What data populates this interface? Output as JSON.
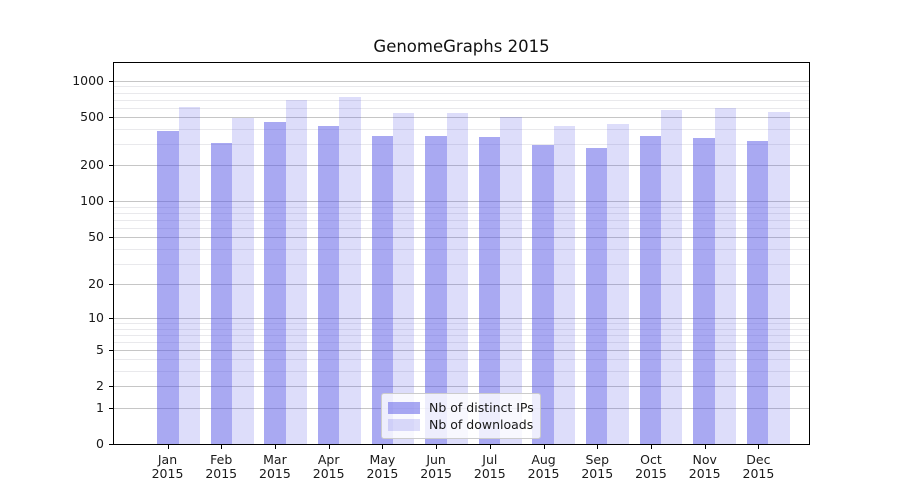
{
  "title": "GenomeGraphs 2015",
  "chart_data": {
    "type": "bar",
    "title": "GenomeGraphs 2015",
    "categories": [
      "Jan",
      "Feb",
      "Mar",
      "Apr",
      "May",
      "Jun",
      "Jul",
      "Aug",
      "Sep",
      "Oct",
      "Nov",
      "Dec"
    ],
    "category_year": "2015",
    "series": [
      {
        "name": "Nb of distinct IPs",
        "color": "#a9a9f2",
        "color_rgba": "rgba(83,83,229,0.5)",
        "values": [
          385,
          307,
          456,
          421,
          348,
          347,
          342,
          295,
          276,
          350,
          338,
          321
        ]
      },
      {
        "name": "Nb of downloads",
        "color": "#dcdcf9",
        "color_rgba": "rgba(83,83,229,0.2)",
        "values": [
          610,
          497,
          692,
          734,
          541,
          546,
          503,
          422,
          439,
          573,
          600,
          551
        ]
      }
    ],
    "xlabel": "",
    "ylabel": "",
    "yscale": "log1p",
    "ylim": [
      0,
      1405
    ],
    "y_ticks": [
      0,
      1,
      2,
      5,
      10,
      20,
      50,
      100,
      200,
      500,
      1000
    ],
    "y_minor_gridlines": [
      3,
      4,
      6,
      7,
      8,
      9,
      30,
      40,
      60,
      70,
      80,
      90,
      300,
      400,
      600,
      700,
      800,
      900
    ],
    "grid": "on",
    "legend_position": "lower center"
  },
  "axis_colors": {
    "spine": "#000000",
    "major_grid": "#c6c6c6",
    "minor_grid": "#e9e9ec",
    "text": "#1a1a1a"
  }
}
